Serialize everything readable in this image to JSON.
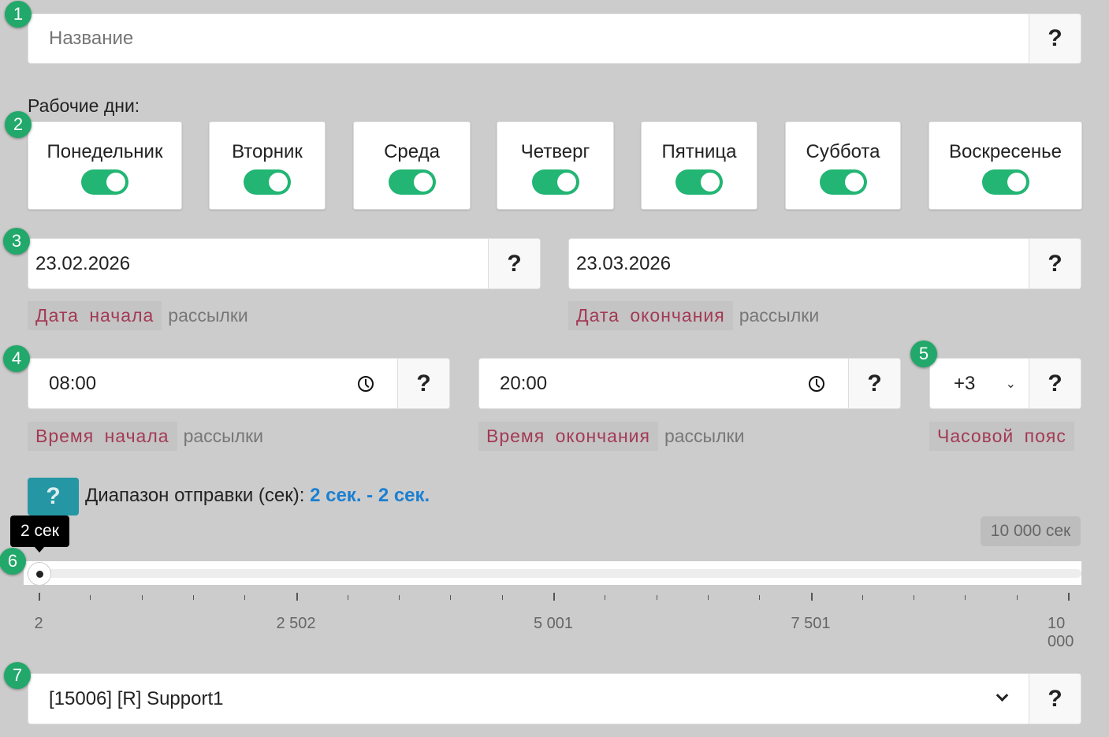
{
  "name_field": {
    "placeholder": "Название",
    "help": "?"
  },
  "working_days": {
    "label": "Рабочие дни:",
    "days": [
      {
        "label": "Понедельник",
        "on": true
      },
      {
        "label": "Вторник",
        "on": true
      },
      {
        "label": "Среда",
        "on": true
      },
      {
        "label": "Четверг",
        "on": true
      },
      {
        "label": "Пятница",
        "on": true
      },
      {
        "label": "Суббота",
        "on": true
      },
      {
        "label": "Воскресенье",
        "on": true
      }
    ]
  },
  "dates": {
    "start": {
      "value": "23.02.2026",
      "caption_highlight": "Дата начала",
      "caption_rest": "рассылки"
    },
    "end": {
      "value": "23.03.2026",
      "caption_highlight": "Дата окончания",
      "caption_rest": "рассылки"
    }
  },
  "times": {
    "start": {
      "value": "08:00",
      "caption_highlight": "Время начала",
      "caption_rest": "рассылки"
    },
    "end": {
      "value": "20:00",
      "caption_highlight": "Время окончания",
      "caption_rest": "рассылки"
    },
    "timezone": {
      "value": "+3",
      "caption": "Часовой пояс"
    }
  },
  "range": {
    "help": "?",
    "label": "Диапазон отправки (сек):",
    "value_text": "2 сек. - 2 сек.",
    "tooltip": "2 сек",
    "max_chip": "10 000 сек",
    "min": 2,
    "max": 10000,
    "value": 2,
    "tick_labels": [
      "2",
      "2 502",
      "5 001",
      "7 501",
      "10 000"
    ]
  },
  "account_select": {
    "value": "[15006] [R] Support1",
    "help": "?"
  },
  "badges": [
    "1",
    "2",
    "3",
    "4",
    "5",
    "6",
    "7"
  ],
  "colors": {
    "background": "#cccccc",
    "toggle_on": "#22b573",
    "badge": "#22a86a",
    "accent_blue": "#1a7fd1",
    "help_teal": "#2596a4",
    "caption_red": "#a33a55"
  }
}
